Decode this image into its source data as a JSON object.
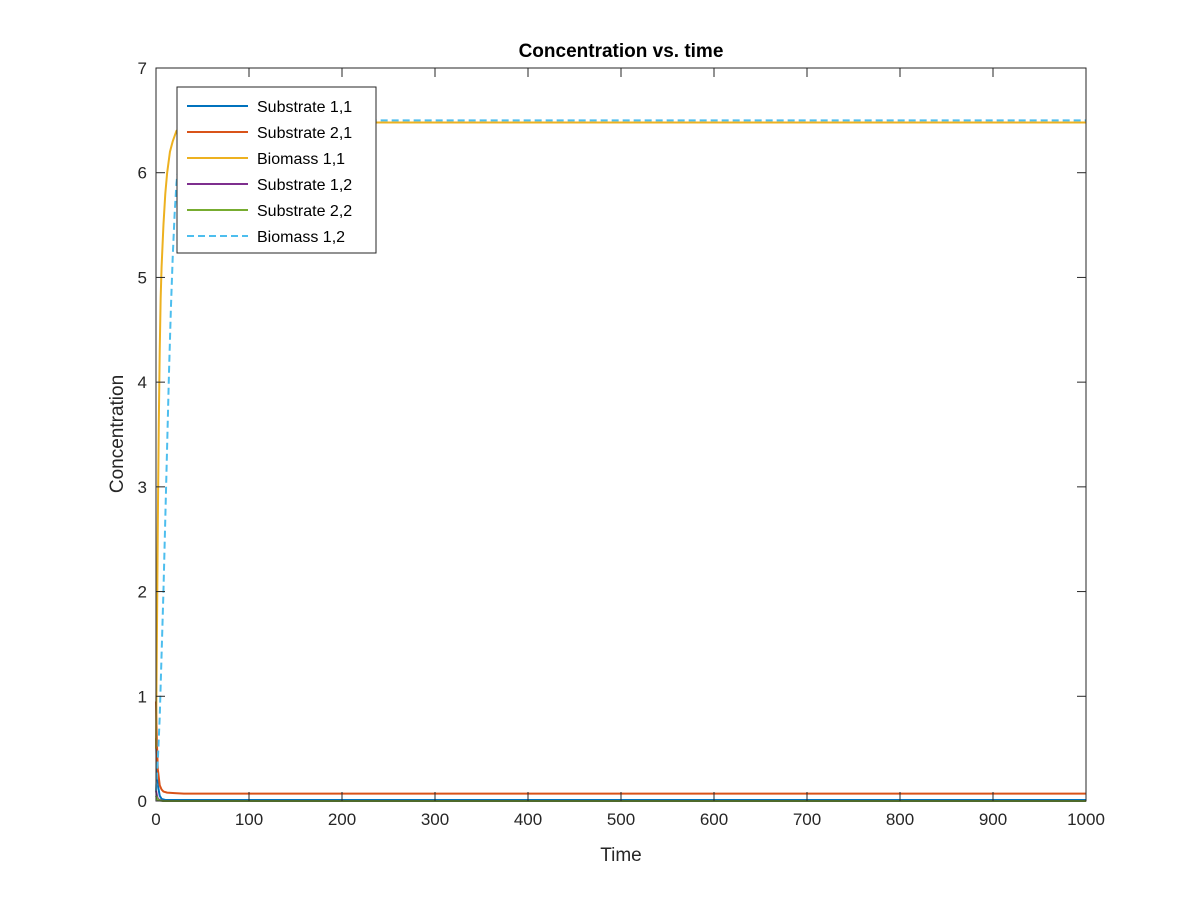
{
  "chart_data": {
    "type": "line",
    "title": "Concentration vs. time",
    "xlabel": "Time",
    "ylabel": "Concentration",
    "xlim": [
      0,
      1000
    ],
    "ylim": [
      0,
      7
    ],
    "xticks": [
      0,
      100,
      200,
      300,
      400,
      500,
      600,
      700,
      800,
      900,
      1000
    ],
    "yticks": [
      0,
      1,
      2,
      3,
      4,
      5,
      6,
      7
    ],
    "grid": false,
    "legend_position": "top-left",
    "series": [
      {
        "name": "Substrate 1,1",
        "color": "#0072bd",
        "dash": "solid",
        "x": [
          0,
          1,
          2,
          4,
          6,
          10,
          20,
          1000
        ],
        "y": [
          0.6,
          0.3,
          0.15,
          0.05,
          0.02,
          0.01,
          0.01,
          0.01
        ]
      },
      {
        "name": "Substrate 2,1",
        "color": "#d95319",
        "dash": "solid",
        "x": [
          0,
          1,
          2,
          4,
          6,
          8,
          12,
          20,
          30,
          1000
        ],
        "y": [
          0.95,
          0.55,
          0.3,
          0.15,
          0.11,
          0.09,
          0.08,
          0.075,
          0.07,
          0.07
        ]
      },
      {
        "name": "Biomass 1,1",
        "color": "#edb120",
        "dash": "solid",
        "x": [
          0,
          1,
          2,
          3,
          4,
          5,
          6,
          8,
          10,
          12,
          15,
          18,
          22,
          26,
          30,
          40,
          60,
          1000
        ],
        "y": [
          0.5,
          1.6,
          2.7,
          3.6,
          4.3,
          4.8,
          5.1,
          5.5,
          5.8,
          6.0,
          6.2,
          6.3,
          6.4,
          6.43,
          6.45,
          6.47,
          6.48,
          6.48
        ]
      },
      {
        "name": "Substrate 1,2",
        "color": "#7e2f8e",
        "dash": "solid",
        "x": [
          0,
          1,
          2,
          4,
          8,
          1000
        ],
        "y": [
          0.1,
          0.05,
          0.02,
          0.01,
          0.0,
          0.0
        ]
      },
      {
        "name": "Substrate 2,2",
        "color": "#77ac30",
        "dash": "solid",
        "x": [
          0,
          1,
          2,
          4,
          8,
          1000
        ],
        "y": [
          0.05,
          0.03,
          0.01,
          0.005,
          0.0,
          0.0
        ]
      },
      {
        "name": "Biomass 1,2",
        "color": "#4dbeee",
        "dash": "dashed",
        "x": [
          0,
          2,
          4,
          6,
          8,
          10,
          12,
          14,
          16,
          18,
          20,
          22,
          25,
          28,
          32,
          40,
          60,
          100,
          1000
        ],
        "y": [
          0.1,
          0.4,
          0.8,
          1.4,
          2.0,
          2.7,
          3.4,
          4.1,
          4.7,
          5.2,
          5.6,
          5.9,
          6.15,
          6.3,
          6.4,
          6.45,
          6.48,
          6.5,
          6.5
        ]
      }
    ]
  }
}
